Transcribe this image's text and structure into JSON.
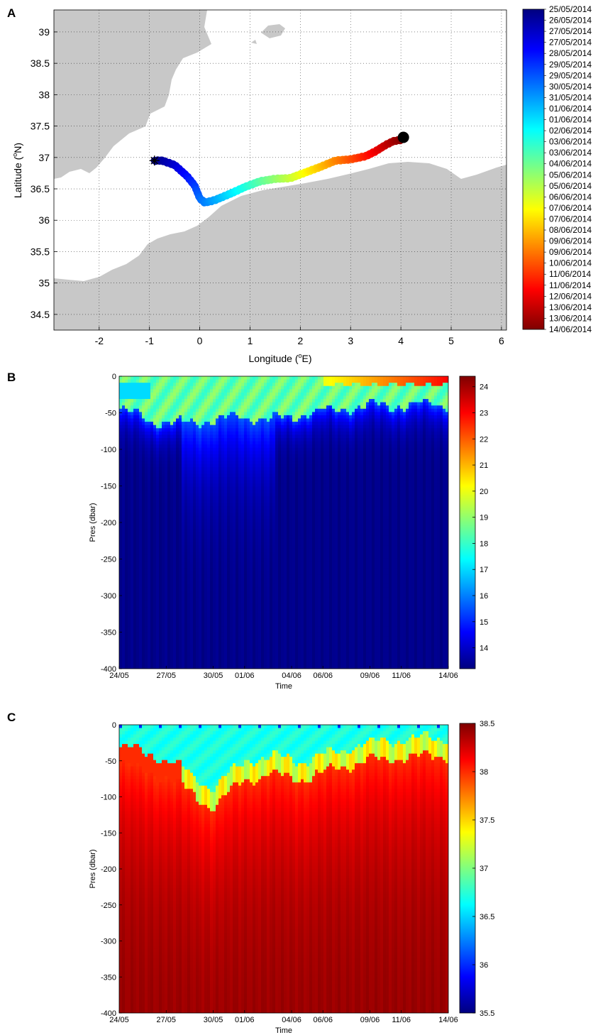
{
  "panels": {
    "a_label": "A",
    "b_label": "B",
    "c_label": "C"
  },
  "chart_data": [
    {
      "type": "scatter",
      "panel": "A",
      "subtype": "map-trajectory",
      "xlabel": "Longitude (",
      "xlabel_sup": "o",
      "xlabel_end": "E)",
      "ylabel": "Latitude (",
      "ylabel_sup": "o",
      "ylabel_end": "N)",
      "xlim": [
        -2.9,
        6.1
      ],
      "ylim": [
        34.25,
        39.35
      ],
      "xticks": [
        -2,
        -1,
        0,
        1,
        2,
        3,
        4,
        5,
        6
      ],
      "yticks": [
        34.5,
        35,
        35.5,
        36,
        36.5,
        37,
        37.5,
        38,
        38.5,
        39
      ],
      "grid": true,
      "land_color": "#c8c8c8",
      "track": {
        "lon": [
          -0.9,
          -0.75,
          -0.5,
          -0.25,
          -0.1,
          0.0,
          0.1,
          0.3,
          0.6,
          0.9,
          1.2,
          1.5,
          1.8,
          2.1,
          2.4,
          2.7,
          3.0,
          3.3,
          3.5,
          3.7,
          3.85,
          4.0,
          4.05
        ],
        "lat": [
          36.95,
          36.95,
          36.88,
          36.7,
          36.55,
          36.35,
          36.28,
          36.32,
          36.42,
          36.53,
          36.62,
          36.66,
          36.67,
          36.76,
          36.85,
          36.95,
          36.97,
          37.02,
          37.1,
          37.2,
          37.26,
          37.28,
          37.32
        ],
        "start_marker": "star",
        "end_marker": "dot"
      },
      "colorbar": {
        "labels": [
          "25/05/2014",
          "26/05/2014",
          "27/05/2014",
          "27/05/2014",
          "28/05/2014",
          "29/05/2014",
          "29/05/2014",
          "30/05/2014",
          "31/05/2014",
          "01/06/2014",
          "01/06/2014",
          "02/06/2014",
          "03/06/2014",
          "03/06/2014",
          "04/06/2014",
          "05/06/2014",
          "05/06/2014",
          "06/06/2014",
          "07/06/2014",
          "07/06/2014",
          "08/06/2014",
          "09/06/2014",
          "09/06/2014",
          "10/06/2014",
          "11/06/2014",
          "11/06/2014",
          "12/06/2014",
          "13/06/2014",
          "13/06/2014",
          "14/06/2014"
        ],
        "colormap": "jet"
      }
    },
    {
      "type": "heatmap",
      "panel": "B",
      "xlabel": "Time",
      "ylabel": "Pres (dbar)",
      "x_tick_labels": [
        "24/05",
        "27/05",
        "30/05",
        "01/06",
        "04/06",
        "06/06",
        "09/06",
        "11/06",
        "14/06"
      ],
      "x_values": [
        0,
        3,
        6,
        8,
        11,
        13,
        16,
        18,
        21
      ],
      "xlim": [
        0,
        21
      ],
      "ylim": [
        -400,
        0
      ],
      "yticks": [
        0,
        -50,
        -100,
        -150,
        -200,
        -250,
        -300,
        -350,
        -400
      ],
      "colormap": "jet",
      "colorbar": {
        "min": 13.2,
        "max": 24.4,
        "ticks": [
          14,
          15,
          16,
          17,
          18,
          19,
          20,
          21,
          22,
          23,
          24
        ]
      },
      "field_description_values": {
        "surface_value": 18.5,
        "mixed_layer_depth": [
          -45,
          -60,
          -65,
          -60,
          -55,
          -60,
          -50,
          -45,
          -40,
          -40,
          -38
        ],
        "mixed_layer_days": [
          0,
          2,
          4,
          6,
          8,
          10,
          12,
          14,
          16,
          18,
          21
        ],
        "deep_value": 13.3,
        "late_surface_value": 23
      }
    },
    {
      "type": "heatmap",
      "panel": "C",
      "xlabel": "Time",
      "ylabel": "Pres (dbar)",
      "x_tick_labels": [
        "24/05",
        "27/05",
        "30/05",
        "01/06",
        "04/06",
        "06/06",
        "09/06",
        "11/06",
        "14/06"
      ],
      "x_values": [
        0,
        3,
        6,
        8,
        11,
        13,
        16,
        18,
        21
      ],
      "xlim": [
        0,
        21
      ],
      "ylim": [
        -400,
        0
      ],
      "yticks": [
        0,
        -50,
        -100,
        -150,
        -200,
        -250,
        -300,
        -350,
        -400
      ],
      "colormap": "jet",
      "colorbar": {
        "min": 35.5,
        "max": 38.5,
        "ticks": [
          35.5,
          36,
          36.5,
          37,
          37.5,
          38,
          38.5
        ]
      },
      "field_description_values": {
        "surface_value": 36.7,
        "halocline_depth": [
          -40,
          -50,
          -70,
          -100,
          -60,
          -55,
          -60,
          -45,
          -35,
          -30,
          -28
        ],
        "halocline_days": [
          0,
          2,
          4,
          6,
          8,
          10,
          12,
          14,
          16,
          18,
          21
        ],
        "deep_value": 38.45
      }
    }
  ]
}
